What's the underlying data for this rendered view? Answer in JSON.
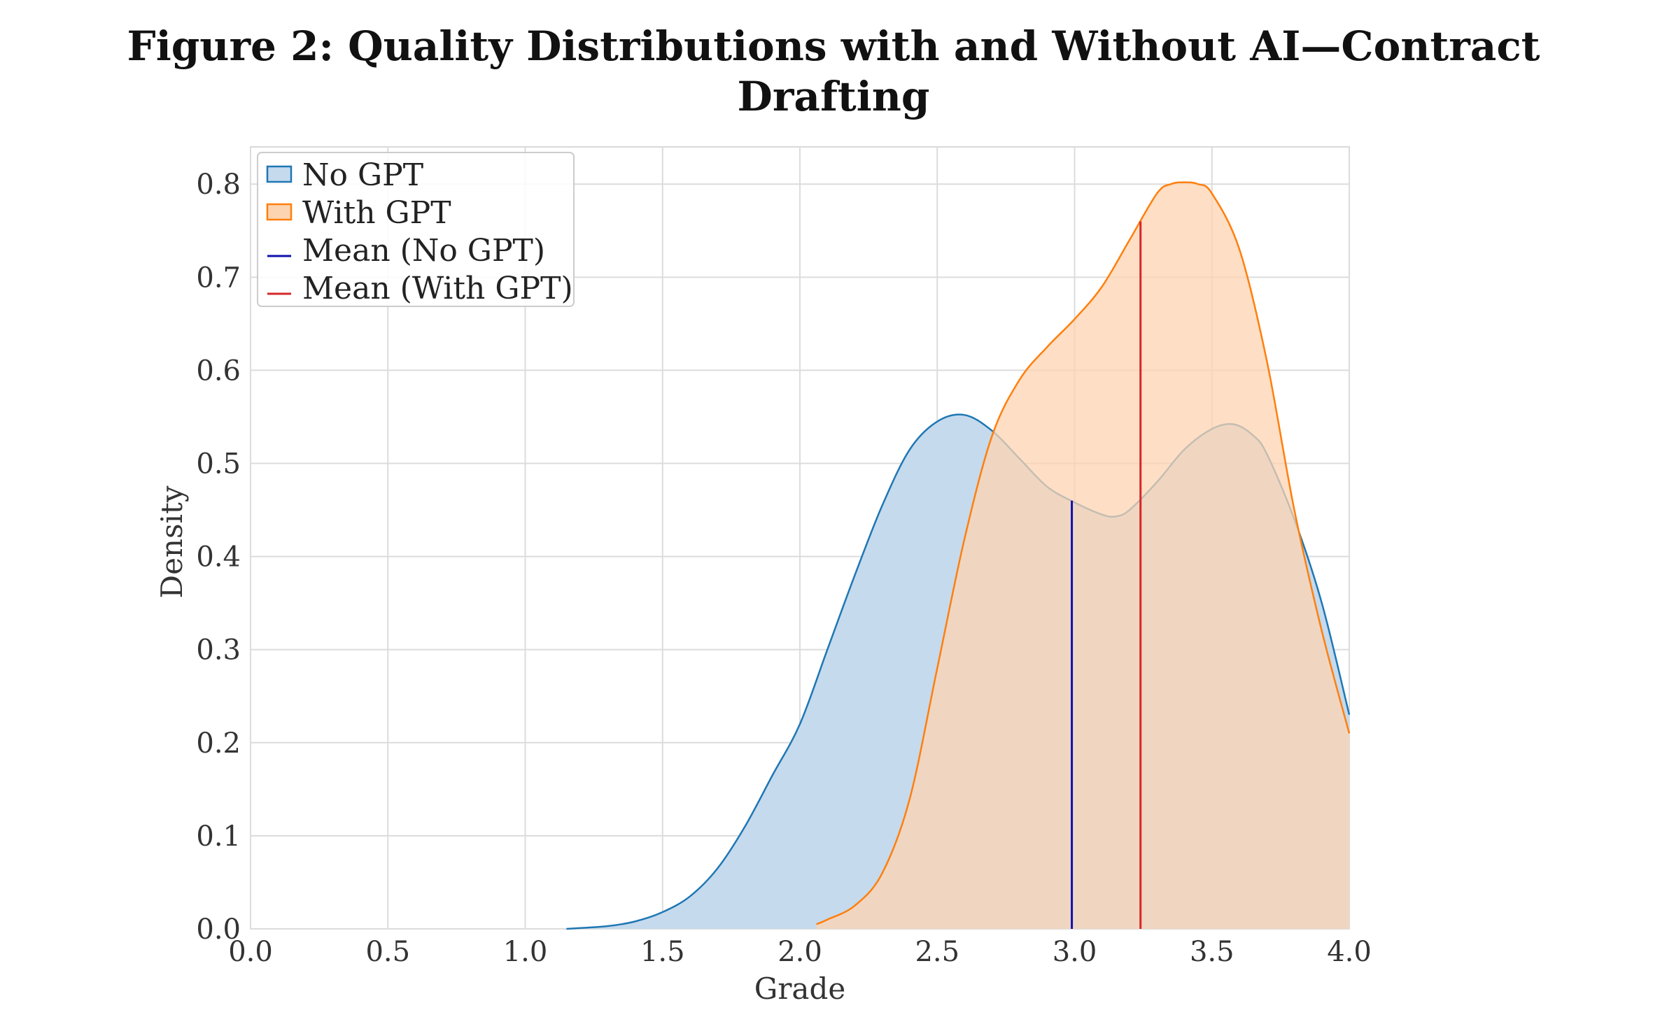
{
  "figure": {
    "title_line1": "Figure 2: Quality Distributions with and Without AI—Contract",
    "title_line2": "Drafting"
  },
  "chart_data": {
    "type": "area",
    "xlabel": "Grade",
    "ylabel": "Density",
    "xlim": [
      0.0,
      4.0
    ],
    "ylim": [
      0.0,
      0.84
    ],
    "x_ticks": [
      "0.0",
      "0.5",
      "1.0",
      "1.5",
      "2.0",
      "2.5",
      "3.0",
      "3.5",
      "4.0"
    ],
    "y_ticks": [
      "0.0",
      "0.1",
      "0.2",
      "0.3",
      "0.4",
      "0.5",
      "0.6",
      "0.7",
      "0.8"
    ],
    "grid": true,
    "legend_position": "top-left",
    "series": [
      {
        "name": "No GPT",
        "kind": "density",
        "color": "#1f77b4",
        "fill": "#c5daed",
        "x": [
          1.15,
          1.3,
          1.4,
          1.5,
          1.6,
          1.7,
          1.8,
          1.9,
          2.0,
          2.1,
          2.2,
          2.3,
          2.4,
          2.5,
          2.6,
          2.7,
          2.8,
          2.9,
          3.0,
          3.1,
          3.15,
          3.2,
          3.3,
          3.4,
          3.5,
          3.58,
          3.65,
          3.7,
          3.8,
          3.9,
          4.0
        ],
        "y": [
          0.0,
          0.003,
          0.008,
          0.018,
          0.035,
          0.065,
          0.11,
          0.165,
          0.22,
          0.3,
          0.38,
          0.455,
          0.515,
          0.545,
          0.552,
          0.535,
          0.505,
          0.475,
          0.458,
          0.445,
          0.443,
          0.45,
          0.48,
          0.515,
          0.537,
          0.542,
          0.53,
          0.51,
          0.44,
          0.35,
          0.23
        ]
      },
      {
        "name": "With GPT",
        "kind": "density",
        "color": "#ff7f0e",
        "fill": "#fdd4b1",
        "x": [
          2.06,
          2.1,
          2.2,
          2.3,
          2.4,
          2.5,
          2.6,
          2.7,
          2.8,
          2.9,
          3.0,
          3.1,
          3.2,
          3.3,
          3.35,
          3.4,
          3.45,
          3.5,
          3.6,
          3.7,
          3.8,
          3.9,
          4.0
        ],
        "y": [
          0.005,
          0.01,
          0.025,
          0.06,
          0.14,
          0.28,
          0.42,
          0.53,
          0.59,
          0.625,
          0.655,
          0.69,
          0.74,
          0.79,
          0.8,
          0.802,
          0.8,
          0.79,
          0.73,
          0.61,
          0.45,
          0.32,
          0.21
        ]
      },
      {
        "name": "Mean (No GPT)",
        "kind": "vline",
        "color": "#1010b0",
        "x": 2.99,
        "y_top": 0.46
      },
      {
        "name": "Mean (With GPT)",
        "kind": "vline",
        "color": "#d62728",
        "x": 3.24,
        "y_top": 0.76
      }
    ]
  }
}
